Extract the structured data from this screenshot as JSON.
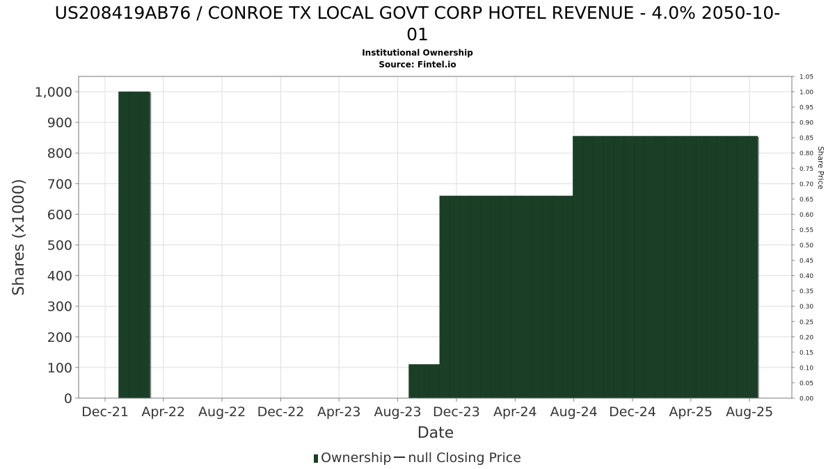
{
  "chart_data": {
    "type": "bar",
    "title": "US208419AB76 / CONROE TX LOCAL GOVT CORP HOTEL REVENUE - 4.0% 2050-10-01",
    "title_line1": "US208419AB76 / CONROE TX LOCAL GOVT CORP HOTEL REVENUE - 4.0% 2050-10-",
    "title_line2": "01",
    "subtitle": "Institutional Ownership",
    "source": "Source: Fintel.io",
    "xlabel": "Date",
    "ylabel": "Shares (x1000)",
    "y2label": "Share Price",
    "ylim": [
      0,
      1050
    ],
    "y2lim": [
      0,
      1.05
    ],
    "yticks": [
      0,
      100,
      200,
      300,
      400,
      500,
      600,
      700,
      800,
      900,
      1000
    ],
    "ytick_labels": [
      "0",
      "100",
      "200",
      "300",
      "400",
      "500",
      "600",
      "700",
      "800",
      "900",
      "1,000"
    ],
    "y2ticks": [
      "0.00",
      "0.05",
      "0.10",
      "0.15",
      "0.20",
      "0.25",
      "0.30",
      "0.35",
      "0.40",
      "0.45",
      "0.50",
      "0.55",
      "0.60",
      "0.65",
      "0.70",
      "0.75",
      "0.80",
      "0.85",
      "0.90",
      "0.95",
      "1.00",
      "1.05"
    ],
    "xlim": [
      "2021-10-07",
      "2025-10-28"
    ],
    "xticks": [
      "2021-12-01",
      "2022-04-01",
      "2022-08-01",
      "2022-12-01",
      "2023-04-01",
      "2023-08-01",
      "2023-12-01",
      "2024-04-01",
      "2024-08-01",
      "2024-12-01",
      "2025-04-01",
      "2025-08-01"
    ],
    "xtick_labels": [
      "Dec-21",
      "Apr-22",
      "Aug-22",
      "Dec-22",
      "Apr-23",
      "Aug-23",
      "Dec-23",
      "Apr-24",
      "Aug-24",
      "Dec-24",
      "Apr-25",
      "Aug-25"
    ],
    "grid": true,
    "legend_position": "bottom",
    "series": [
      {
        "name": "Ownership",
        "color": "#1b3f26",
        "x": [
          "2022-01-09",
          "2022-01-31",
          "2022-02-21",
          "2023-09-04",
          "2023-09-25",
          "2023-10-16",
          "2023-11-07",
          "2023-11-28",
          "2023-12-19",
          "2024-01-09",
          "2024-01-31",
          "2024-02-21",
          "2024-03-13",
          "2024-04-04",
          "2024-04-25",
          "2024-05-16",
          "2024-06-07",
          "2024-06-28",
          "2024-07-19",
          "2024-08-10",
          "2024-08-31",
          "2024-09-21",
          "2024-10-13",
          "2024-11-03",
          "2024-11-24",
          "2024-12-16",
          "2025-01-06",
          "2025-01-27",
          "2025-02-18",
          "2025-03-11",
          "2025-04-01",
          "2025-04-23",
          "2025-05-14",
          "2025-06-04",
          "2025-06-26",
          "2025-07-17",
          "2025-08-07"
        ],
        "values": [
          1000,
          1000,
          1000,
          110,
          110,
          110,
          660,
          660,
          660,
          660,
          660,
          660,
          660,
          660,
          660,
          660,
          660,
          660,
          660,
          855,
          855,
          855,
          855,
          855,
          855,
          855,
          855,
          855,
          855,
          855,
          855,
          855,
          855,
          855,
          855,
          855,
          855
        ]
      },
      {
        "name": "null Closing Price",
        "color": "#333333",
        "x": [],
        "values": []
      }
    ]
  }
}
